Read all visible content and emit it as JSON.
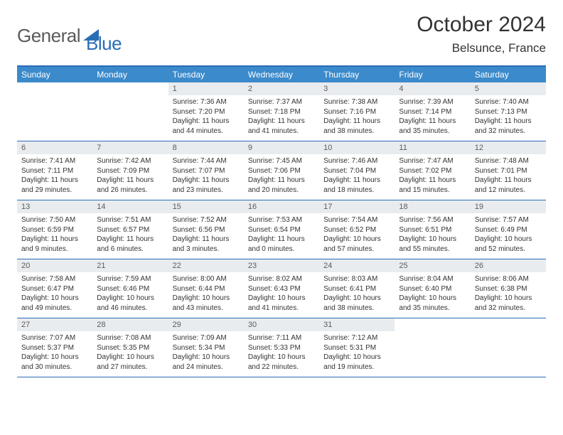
{
  "logo": {
    "general": "General",
    "blue": "Blue"
  },
  "title": "October 2024",
  "location": "Belsunce, France",
  "colors": {
    "header_bar": "#3b8acb",
    "border": "#2a6db5",
    "daynum_bg": "#e9ecef",
    "text": "#333333",
    "logo_gray": "#5a5a5a",
    "logo_blue": "#2a6db5"
  },
  "weekdays": [
    "Sunday",
    "Monday",
    "Tuesday",
    "Wednesday",
    "Thursday",
    "Friday",
    "Saturday"
  ],
  "weeks": [
    [
      null,
      null,
      {
        "n": "1",
        "sunrise": "7:36 AM",
        "sunset": "7:20 PM",
        "daylight": "11 hours and 44 minutes."
      },
      {
        "n": "2",
        "sunrise": "7:37 AM",
        "sunset": "7:18 PM",
        "daylight": "11 hours and 41 minutes."
      },
      {
        "n": "3",
        "sunrise": "7:38 AM",
        "sunset": "7:16 PM",
        "daylight": "11 hours and 38 minutes."
      },
      {
        "n": "4",
        "sunrise": "7:39 AM",
        "sunset": "7:14 PM",
        "daylight": "11 hours and 35 minutes."
      },
      {
        "n": "5",
        "sunrise": "7:40 AM",
        "sunset": "7:13 PM",
        "daylight": "11 hours and 32 minutes."
      }
    ],
    [
      {
        "n": "6",
        "sunrise": "7:41 AM",
        "sunset": "7:11 PM",
        "daylight": "11 hours and 29 minutes."
      },
      {
        "n": "7",
        "sunrise": "7:42 AM",
        "sunset": "7:09 PM",
        "daylight": "11 hours and 26 minutes."
      },
      {
        "n": "8",
        "sunrise": "7:44 AM",
        "sunset": "7:07 PM",
        "daylight": "11 hours and 23 minutes."
      },
      {
        "n": "9",
        "sunrise": "7:45 AM",
        "sunset": "7:06 PM",
        "daylight": "11 hours and 20 minutes."
      },
      {
        "n": "10",
        "sunrise": "7:46 AM",
        "sunset": "7:04 PM",
        "daylight": "11 hours and 18 minutes."
      },
      {
        "n": "11",
        "sunrise": "7:47 AM",
        "sunset": "7:02 PM",
        "daylight": "11 hours and 15 minutes."
      },
      {
        "n": "12",
        "sunrise": "7:48 AM",
        "sunset": "7:01 PM",
        "daylight": "11 hours and 12 minutes."
      }
    ],
    [
      {
        "n": "13",
        "sunrise": "7:50 AM",
        "sunset": "6:59 PM",
        "daylight": "11 hours and 9 minutes."
      },
      {
        "n": "14",
        "sunrise": "7:51 AM",
        "sunset": "6:57 PM",
        "daylight": "11 hours and 6 minutes."
      },
      {
        "n": "15",
        "sunrise": "7:52 AM",
        "sunset": "6:56 PM",
        "daylight": "11 hours and 3 minutes."
      },
      {
        "n": "16",
        "sunrise": "7:53 AM",
        "sunset": "6:54 PM",
        "daylight": "11 hours and 0 minutes."
      },
      {
        "n": "17",
        "sunrise": "7:54 AM",
        "sunset": "6:52 PM",
        "daylight": "10 hours and 57 minutes."
      },
      {
        "n": "18",
        "sunrise": "7:56 AM",
        "sunset": "6:51 PM",
        "daylight": "10 hours and 55 minutes."
      },
      {
        "n": "19",
        "sunrise": "7:57 AM",
        "sunset": "6:49 PM",
        "daylight": "10 hours and 52 minutes."
      }
    ],
    [
      {
        "n": "20",
        "sunrise": "7:58 AM",
        "sunset": "6:47 PM",
        "daylight": "10 hours and 49 minutes."
      },
      {
        "n": "21",
        "sunrise": "7:59 AM",
        "sunset": "6:46 PM",
        "daylight": "10 hours and 46 minutes."
      },
      {
        "n": "22",
        "sunrise": "8:00 AM",
        "sunset": "6:44 PM",
        "daylight": "10 hours and 43 minutes."
      },
      {
        "n": "23",
        "sunrise": "8:02 AM",
        "sunset": "6:43 PM",
        "daylight": "10 hours and 41 minutes."
      },
      {
        "n": "24",
        "sunrise": "8:03 AM",
        "sunset": "6:41 PM",
        "daylight": "10 hours and 38 minutes."
      },
      {
        "n": "25",
        "sunrise": "8:04 AM",
        "sunset": "6:40 PM",
        "daylight": "10 hours and 35 minutes."
      },
      {
        "n": "26",
        "sunrise": "8:06 AM",
        "sunset": "6:38 PM",
        "daylight": "10 hours and 32 minutes."
      }
    ],
    [
      {
        "n": "27",
        "sunrise": "7:07 AM",
        "sunset": "5:37 PM",
        "daylight": "10 hours and 30 minutes."
      },
      {
        "n": "28",
        "sunrise": "7:08 AM",
        "sunset": "5:35 PM",
        "daylight": "10 hours and 27 minutes."
      },
      {
        "n": "29",
        "sunrise": "7:09 AM",
        "sunset": "5:34 PM",
        "daylight": "10 hours and 24 minutes."
      },
      {
        "n": "30",
        "sunrise": "7:11 AM",
        "sunset": "5:33 PM",
        "daylight": "10 hours and 22 minutes."
      },
      {
        "n": "31",
        "sunrise": "7:12 AM",
        "sunset": "5:31 PM",
        "daylight": "10 hours and 19 minutes."
      },
      null,
      null
    ]
  ],
  "labels": {
    "sunrise": "Sunrise:",
    "sunset": "Sunset:",
    "daylight": "Daylight:"
  }
}
